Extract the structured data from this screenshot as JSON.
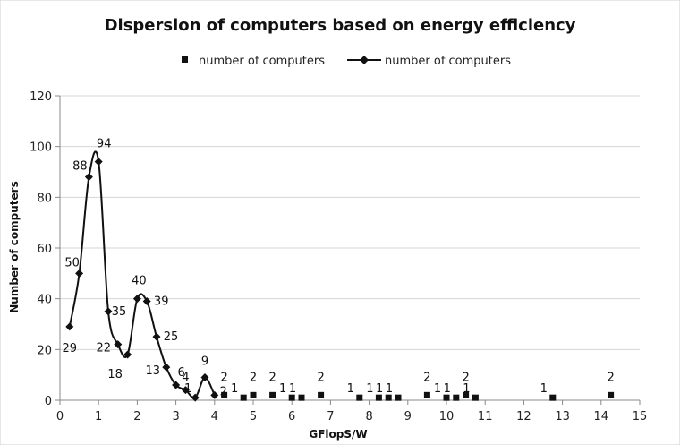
{
  "chart_data": {
    "type": "scatter",
    "title": "Dispersion of computers based on energy efficiency",
    "xlabel": "GFlopS/W",
    "ylabel": "Number of computers",
    "xlim": [
      0,
      15
    ],
    "ylim": [
      0,
      120
    ],
    "x_ticks": [
      "0",
      "1",
      "2",
      "3",
      "4",
      "5",
      "6",
      "7",
      "8",
      "9",
      "10",
      "11",
      "12",
      "13",
      "14",
      "15"
    ],
    "y_ticks": [
      "0",
      "20",
      "40",
      "60",
      "80",
      "100",
      "120"
    ],
    "grid": "horizontal",
    "legend_position": "top",
    "series": [
      {
        "name": "number of computers",
        "kind": "marker-only",
        "marker": "square",
        "points": [
          {
            "x": 4.25,
            "y": 2,
            "label": "2"
          },
          {
            "x": 4.75,
            "y": 1,
            "label": "1"
          },
          {
            "x": 5.0,
            "y": 2,
            "label": "2"
          },
          {
            "x": 5.5,
            "y": 2,
            "label": "2"
          },
          {
            "x": 6.0,
            "y": 1,
            "label": "1"
          },
          {
            "x": 6.25,
            "y": 1,
            "label": "1"
          },
          {
            "x": 6.75,
            "y": 2,
            "label": "2"
          },
          {
            "x": 7.75,
            "y": 1,
            "label": "1"
          },
          {
            "x": 8.25,
            "y": 1,
            "label": "1"
          },
          {
            "x": 8.5,
            "y": 1,
            "label": "1"
          },
          {
            "x": 8.75,
            "y": 1,
            "label": "1"
          },
          {
            "x": 9.5,
            "y": 2,
            "label": "2"
          },
          {
            "x": 10.0,
            "y": 1,
            "label": "1"
          },
          {
            "x": 10.25,
            "y": 1,
            "label": "1"
          },
          {
            "x": 10.5,
            "y": 2,
            "label": "2"
          },
          {
            "x": 10.75,
            "y": 1,
            "label": "1"
          },
          {
            "x": 12.75,
            "y": 1,
            "label": "1"
          },
          {
            "x": 14.25,
            "y": 2,
            "label": "2"
          }
        ]
      },
      {
        "name": "number of computers",
        "kind": "smooth-line",
        "marker": "diamond",
        "points": [
          {
            "x": 0.25,
            "y": 29,
            "label": "29"
          },
          {
            "x": 0.5,
            "y": 50,
            "label": "50"
          },
          {
            "x": 0.75,
            "y": 88,
            "label": "88"
          },
          {
            "x": 1.0,
            "y": 94,
            "label": "94"
          },
          {
            "x": 1.25,
            "y": 35,
            "label": "35"
          },
          {
            "x": 1.5,
            "y": 22,
            "label": "22"
          },
          {
            "x": 1.75,
            "y": 18,
            "label": "18"
          },
          {
            "x": 2.0,
            "y": 40,
            "label": "40"
          },
          {
            "x": 2.25,
            "y": 39,
            "label": "39"
          },
          {
            "x": 2.5,
            "y": 25,
            "label": "25"
          },
          {
            "x": 2.75,
            "y": 13,
            "label": "13"
          },
          {
            "x": 3.0,
            "y": 6,
            "label": "6"
          },
          {
            "x": 3.25,
            "y": 4,
            "label": "4"
          },
          {
            "x": 3.5,
            "y": 1,
            "label": "1"
          },
          {
            "x": 3.75,
            "y": 9,
            "label": "9"
          },
          {
            "x": 4.0,
            "y": 2,
            "label": "2"
          }
        ]
      }
    ]
  }
}
